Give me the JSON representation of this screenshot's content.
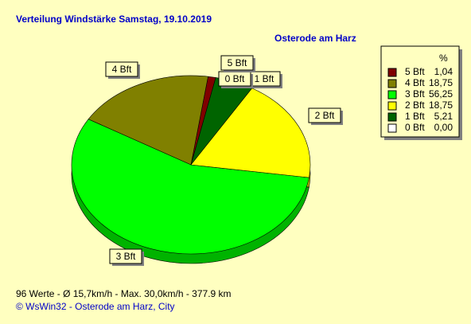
{
  "chart_data": {
    "type": "pie",
    "title": "Verteilung Windstärke  Samstag, 19.10.2019",
    "subtitle": "Osterode am Harz",
    "legend_header": "%",
    "categories": [
      "5 Bft",
      "4 Bft",
      "3 Bft",
      "2 Bft",
      "1 Bft",
      "0 Bft"
    ],
    "values": [
      1.04,
      18.75,
      56.25,
      18.75,
      5.21,
      0.0
    ],
    "value_labels": [
      "1,04",
      "18,75",
      "56,25",
      "18,75",
      "5,21",
      "0,00"
    ],
    "colors": [
      "#800000",
      "#808000",
      "#00ff00",
      "#ffff00",
      "#006400",
      "#ffffff"
    ],
    "legend": "right",
    "footer": "96 Werte   -   Ø 15,7km/h  -  Max. 30,0km/h   -   377.9 km",
    "copyright": "© WsWin32  -  Osterode am Harz, City"
  }
}
